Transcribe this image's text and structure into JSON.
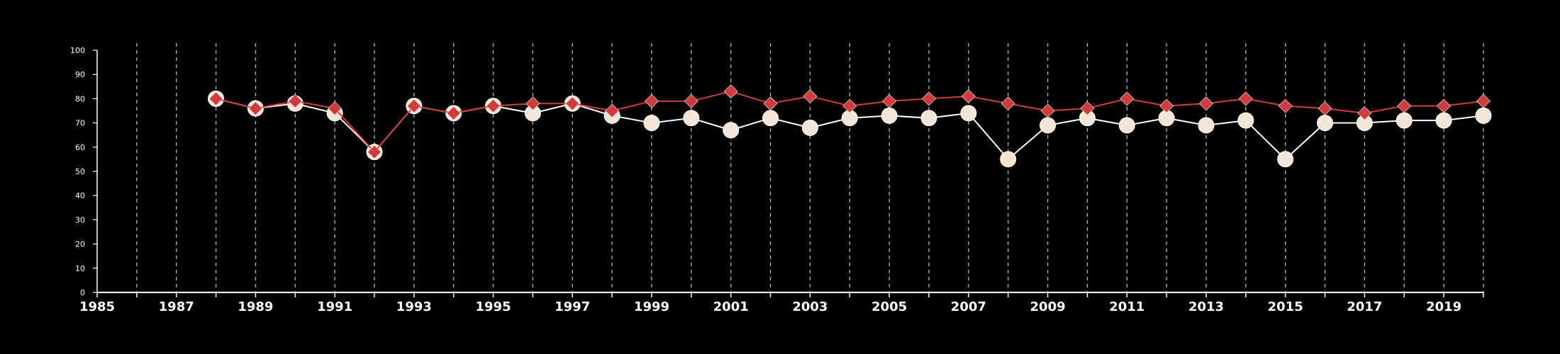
{
  "chart_data": {
    "type": "line",
    "title": "",
    "xlabel": "",
    "ylabel": "",
    "xlim": [
      1985,
      2020
    ],
    "ylim": [
      0,
      100
    ],
    "grid": "vertical dashed lines at each year",
    "legend": "none",
    "x_ticks": [
      1985,
      1987,
      1989,
      1991,
      1993,
      1995,
      1997,
      1999,
      2001,
      2003,
      2005,
      2007,
      2009,
      2011,
      2013,
      2015,
      2017,
      2019
    ],
    "y_ticks": [
      0,
      10,
      20,
      30,
      40,
      50,
      60,
      70,
      80,
      90,
      100
    ],
    "series": [
      {
        "marker": "circle",
        "line_color": "#ffffff",
        "marker_fill": "#f3e6d6",
        "x": [
          1988,
          1989,
          1990,
          1991,
          1992,
          1993,
          1994,
          1995,
          1996,
          1997,
          1998,
          1999,
          2000,
          2001,
          2002,
          2003,
          2004,
          2005,
          2006,
          2007,
          2008,
          2009,
          2010,
          2011,
          2012,
          2013,
          2014,
          2015,
          2016,
          2017,
          2018,
          2019,
          2020
        ],
        "values": [
          80,
          76,
          78,
          74,
          58,
          77,
          74,
          77,
          74,
          78,
          73,
          70,
          72,
          67,
          72,
          68,
          72,
          73,
          72,
          74,
          55,
          69,
          72,
          69,
          72,
          69,
          71,
          55,
          70,
          70,
          71,
          71,
          73
        ]
      },
      {
        "marker": "diamond",
        "line_color": "#d13b3b",
        "marker_fill": "#d13b3b",
        "x": [
          1988,
          1989,
          1990,
          1991,
          1992,
          1993,
          1994,
          1995,
          1996,
          1997,
          1998,
          1999,
          2000,
          2001,
          2002,
          2003,
          2004,
          2005,
          2006,
          2007,
          2008,
          2009,
          2010,
          2011,
          2012,
          2013,
          2014,
          2015,
          2016,
          2017,
          2018,
          2019,
          2020
        ],
        "values": [
          80,
          76,
          79,
          76,
          58,
          77,
          74,
          77,
          78,
          78,
          75,
          79,
          79,
          83,
          78,
          81,
          77,
          79,
          80,
          81,
          78,
          75,
          76,
          80,
          77,
          78,
          80,
          77,
          76,
          74,
          77,
          77,
          79
        ]
      }
    ]
  }
}
